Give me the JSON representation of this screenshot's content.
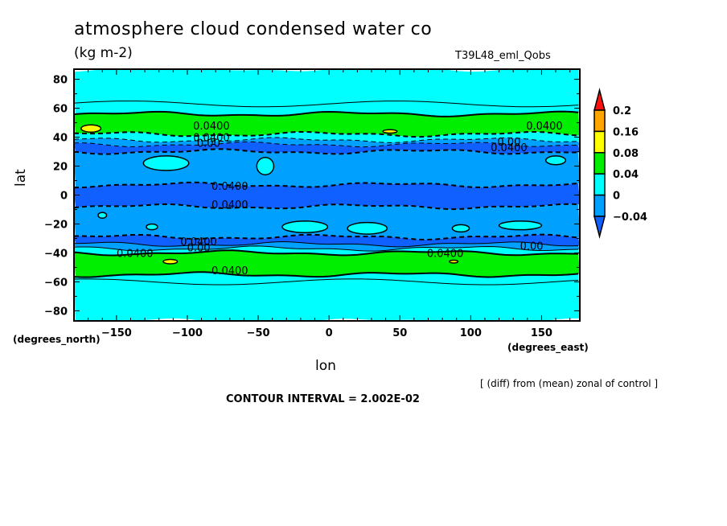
{
  "chart_data": {
    "type": "heatmap",
    "subtype": "filled-contour map",
    "title": "atmosphere cloud condensed water co",
    "units": "(kg m-2)",
    "experiment": "T39L48_eml_Qobs",
    "xlabel": "lon",
    "ylabel": "lat",
    "x_units": "(degrees_east)",
    "y_units": "(degrees_north)",
    "xlim": [
      -180,
      177
    ],
    "ylim": [
      -87,
      87
    ],
    "x_ticks": [
      -150,
      -100,
      -50,
      0,
      50,
      100,
      150
    ],
    "x_tick_labels": [
      "−150",
      "−100",
      "−50",
      "0",
      "50",
      "100",
      "150"
    ],
    "y_ticks": [
      80,
      60,
      40,
      20,
      0,
      -20,
      -40,
      -60,
      -80
    ],
    "y_tick_labels": [
      "80",
      "60",
      "40",
      "20",
      "0",
      "−20",
      "−40",
      "−60",
      "−80"
    ],
    "note": "[ (diff) from (mean) zonal of control ]",
    "contour_interval_text": "CONTOUR INTERVAL = 2.002E-02",
    "colorbar": {
      "labels": [
        "0.2",
        "0.16",
        "0.08",
        "0.04",
        "0",
        "−0.04"
      ],
      "colors": [
        "#ff1010",
        "#ffa500",
        "#ffff00",
        "#00ee00",
        "#00ffff",
        "#00a0ff",
        "#1060ff"
      ],
      "levels": [
        -0.04,
        0,
        0.04,
        0.08,
        0.16,
        0.2
      ]
    },
    "zonal_bands": [
      {
        "lat_from": 87,
        "lat_to": 56,
        "color_index": 4
      },
      {
        "lat_from": 56,
        "lat_to": 42,
        "color_index": 3
      },
      {
        "lat_from": 42,
        "lat_to": 38,
        "color_index": 4
      },
      {
        "lat_from": 38,
        "lat_to": 35,
        "color_index": 5
      },
      {
        "lat_from": 35,
        "lat_to": 30,
        "color_index": 6
      },
      {
        "lat_from": 30,
        "lat_to": 7,
        "color_index": 5
      },
      {
        "lat_from": 7,
        "lat_to": -8,
        "color_index": 6
      },
      {
        "lat_from": -8,
        "lat_to": -29,
        "color_index": 5
      },
      {
        "lat_from": -29,
        "lat_to": -34,
        "color_index": 6
      },
      {
        "lat_from": -34,
        "lat_to": -37,
        "color_index": 5
      },
      {
        "lat_from": -37,
        "lat_to": -40,
        "color_index": 4
      },
      {
        "lat_from": -40,
        "lat_to": -55,
        "color_index": 3
      },
      {
        "lat_from": -55,
        "lat_to": -87,
        "color_index": 4
      }
    ],
    "blobs": [
      {
        "lon": -168,
        "lat": 46,
        "rlon": 7,
        "rlat": 2.5,
        "color_index": 2
      },
      {
        "lon": 43,
        "lat": 44,
        "rlon": 5,
        "rlat": 1.2,
        "color_index": 2
      },
      {
        "lon": -112,
        "lat": -46,
        "rlon": 5,
        "rlat": 1.5,
        "color_index": 2
      },
      {
        "lon": 88,
        "lat": -46,
        "rlon": 3,
        "rlat": 1,
        "color_index": 2
      },
      {
        "lon": -115,
        "lat": 22,
        "rlon": 16,
        "rlat": 5,
        "color_index": 4
      },
      {
        "lon": -45,
        "lat": 20,
        "rlon": 6,
        "rlat": 6,
        "color_index": 4
      },
      {
        "lon": -17,
        "lat": -22,
        "rlon": 16,
        "rlat": 4,
        "color_index": 4
      },
      {
        "lon": 27,
        "lat": -23,
        "rlon": 14,
        "rlat": 4,
        "color_index": 4
      },
      {
        "lon": 135,
        "lat": -21,
        "rlon": 15,
        "rlat": 3,
        "color_index": 4
      },
      {
        "lon": 160,
        "lat": 24,
        "rlon": 7,
        "rlat": 3,
        "color_index": 4
      },
      {
        "lon": 93,
        "lat": -23,
        "rlon": 6,
        "rlat": 2.5,
        "color_index": 4
      },
      {
        "lon": -160,
        "lat": -14,
        "rlon": 3,
        "rlat": 2,
        "color_index": 4
      },
      {
        "lon": -125,
        "lat": -22,
        "rlon": 4,
        "rlat": 2,
        "color_index": 4
      }
    ],
    "contour_labels": [
      {
        "text": "0.0400",
        "lon": -83,
        "lat": 48
      },
      {
        "text": "0.0400",
        "lon": -83,
        "lat": 40
      },
      {
        "text": "0.00",
        "lon": -85,
        "lat": 36
      },
      {
        "text": "0.0400",
        "lon": 152,
        "lat": 48
      },
      {
        "text": "0.00",
        "lon": 127,
        "lat": 37
      },
      {
        "text": "0.0400",
        "lon": 127,
        "lat": 33
      },
      {
        "text": "0.0400",
        "lon": -70,
        "lat": 6.5
      },
      {
        "text": "0.0400",
        "lon": -70,
        "lat": -6.5
      },
      {
        "text": "0.0400",
        "lon": -92,
        "lat": -32
      },
      {
        "text": "0.00",
        "lon": -92,
        "lat": -36
      },
      {
        "text": "0.0400",
        "lon": -137,
        "lat": -40
      },
      {
        "text": "0.0400",
        "lon": 82,
        "lat": -40
      },
      {
        "text": "0.00",
        "lon": 143,
        "lat": -35
      },
      {
        "text": "0.0400",
        "lon": -70,
        "lat": -52
      }
    ]
  }
}
